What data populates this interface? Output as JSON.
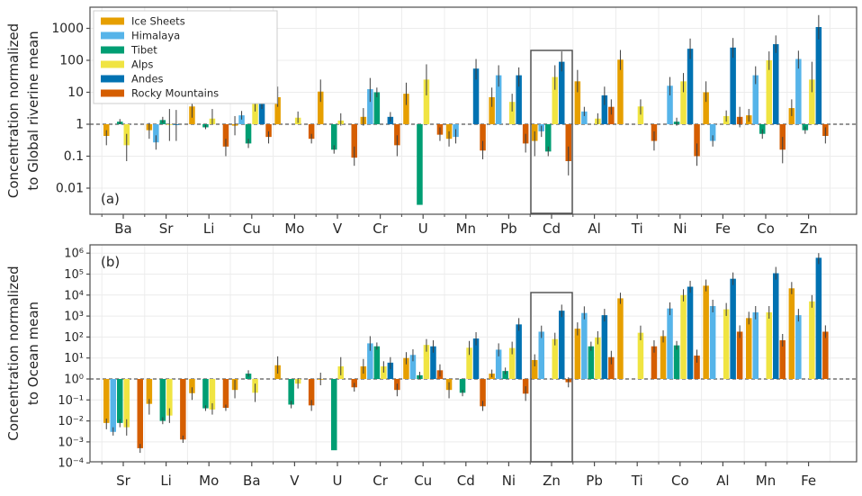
{
  "figure_title": "",
  "legend": {
    "position": "upper left",
    "items": [
      {
        "label": "Ice Sheets",
        "color": "#E69F00"
      },
      {
        "label": "Himalaya",
        "color": "#56B4E9"
      },
      {
        "label": "Tibet",
        "color": "#009E73"
      },
      {
        "label": "Alps",
        "color": "#F0E442"
      },
      {
        "label": "Andes",
        "color": "#0072B2"
      },
      {
        "label": "Rocky Mountains",
        "color": "#D55E00"
      }
    ]
  },
  "chart_data": [
    {
      "type": "bar",
      "panel_tag": "(a)",
      "yscale": "log",
      "ylabel_lines": [
        "Concentration normalized",
        "to Global riverine mean"
      ],
      "yticks": [
        "1000",
        "100",
        "10",
        "1",
        "0.1",
        "0.01"
      ],
      "ytick_values": [
        1000,
        100,
        10,
        1,
        0.1,
        0.01
      ],
      "ylim": [
        0.004,
        4000
      ],
      "reference_line": 1,
      "grid": true,
      "legend_here": true,
      "highlight_category": "Cd",
      "categories": [
        "Ba",
        "Sr",
        "Li",
        "Cu",
        "Mo",
        "V",
        "Cr",
        "U",
        "Mn",
        "Pb",
        "Cd",
        "Al",
        "Ti",
        "Ni",
        "Fe",
        "Co",
        "Zn"
      ],
      "series": [
        {
          "name": "Ice Sheets",
          "color": "#E69F00",
          "values": [
            0.43,
            0.65,
            3.6,
            0.9,
            7,
            10.5,
            1.7,
            9,
            0.35,
            7,
            0.3,
            22,
            105,
            null,
            10,
            1.9,
            3.2
          ],
          "err_lo": [
            0.22,
            0.35,
            1.6,
            0.45,
            3.5,
            5,
            0.9,
            4,
            0.2,
            3.5,
            0.1,
            10,
            50,
            null,
            5,
            1.2,
            1.8
          ],
          "err_hi": [
            0.65,
            1.1,
            8.5,
            1.8,
            15,
            25,
            3.2,
            20,
            0.6,
            14,
            0.6,
            50,
            210,
            null,
            22,
            3,
            6
          ]
        },
        {
          "name": "Himalaya",
          "color": "#56B4E9",
          "values": [
            null,
            0.27,
            null,
            1.9,
            null,
            null,
            12.5,
            null,
            0.4,
            34,
            0.6,
            2.5,
            null,
            16,
            0.3,
            34,
            110
          ],
          "err_lo": [
            null,
            0.16,
            null,
            1.4,
            null,
            null,
            5,
            null,
            0.25,
            15,
            0.4,
            1.8,
            null,
            8,
            0.2,
            18,
            55
          ],
          "err_hi": [
            null,
            0.45,
            null,
            2.6,
            null,
            null,
            28,
            null,
            0.7,
            70,
            0.9,
            3.5,
            null,
            30,
            0.45,
            65,
            200
          ]
        },
        {
          "name": "Tibet",
          "color": "#009E73",
          "values": [
            1.2,
            1.35,
            0.8,
            0.25,
            null,
            0.16,
            10,
            0.003,
            null,
            null,
            0.14,
            null,
            null,
            1.2,
            null,
            0.5,
            0.65
          ],
          "err_lo": [
            1.0,
            1.1,
            0.7,
            0.18,
            null,
            0.12,
            7,
            null,
            null,
            null,
            0.1,
            null,
            null,
            0.9,
            null,
            0.35,
            0.5
          ],
          "err_hi": [
            1.45,
            1.7,
            0.95,
            0.35,
            null,
            0.22,
            14,
            null,
            null,
            null,
            0.2,
            null,
            null,
            1.6,
            null,
            0.7,
            0.85
          ]
        },
        {
          "name": "Alps",
          "color": "#F0E442",
          "values": [
            0.22,
            1.0,
            1.5,
            6,
            1.6,
            1.3,
            null,
            25,
            null,
            5,
            30,
            1.5,
            3.6,
            22,
            1.8,
            100,
            25
          ],
          "err_lo": [
            0.07,
            0.3,
            1.0,
            2.5,
            1.1,
            0.9,
            null,
            8,
            null,
            2.5,
            12,
            1.0,
            2,
            10,
            1.2,
            50,
            10
          ],
          "err_hi": [
            0.5,
            3,
            3,
            14,
            2.5,
            2.2,
            null,
            75,
            null,
            9,
            70,
            2.2,
            6,
            40,
            2.7,
            190,
            90
          ]
        },
        {
          "name": "Andes",
          "color": "#0072B2",
          "values": [
            null,
            0.95,
            null,
            7,
            null,
            null,
            1.7,
            null,
            55,
            34,
            90,
            8,
            null,
            230,
            250,
            320,
            1100
          ],
          "err_lo": [
            null,
            0.3,
            null,
            3,
            null,
            null,
            1.2,
            null,
            25,
            15,
            45,
            4,
            null,
            110,
            120,
            170,
            450
          ],
          "err_hi": [
            null,
            2.8,
            null,
            15,
            null,
            null,
            2.4,
            null,
            110,
            60,
            190,
            15,
            null,
            480,
            500,
            600,
            2600
          ]
        },
        {
          "name": "Rocky Mountains",
          "color": "#D55E00",
          "values": [
            null,
            null,
            0.2,
            0.4,
            0.35,
            0.09,
            0.22,
            0.47,
            0.15,
            0.25,
            0.07,
            3.5,
            0.3,
            0.1,
            1.7,
            0.16,
            0.43
          ],
          "err_lo": [
            null,
            null,
            0.1,
            0.25,
            0.25,
            0.05,
            0.1,
            0.3,
            0.08,
            0.13,
            0.025,
            2,
            0.15,
            0.05,
            0.8,
            0.06,
            0.25
          ],
          "err_hi": [
            null,
            null,
            0.35,
            0.6,
            0.5,
            0.2,
            0.45,
            0.8,
            0.3,
            0.5,
            0.2,
            6,
            0.6,
            0.25,
            3.5,
            0.4,
            0.8
          ]
        }
      ]
    },
    {
      "type": "bar",
      "panel_tag": "(b)",
      "yscale": "log",
      "ylabel_lines": [
        "Concentration normalized",
        "to Ocean mean"
      ],
      "yticks": [
        "10⁶",
        "10⁵",
        "10⁴",
        "10³",
        "10²",
        "10¹",
        "10⁰",
        "10⁻¹",
        "10⁻²",
        "10⁻³",
        "10⁻⁴"
      ],
      "ytick_values": [
        1000000,
        100000,
        10000,
        1000,
        100,
        10,
        1,
        0.1,
        0.01,
        0.001,
        0.0001
      ],
      "ylim": [
        0.0001,
        1000000
      ],
      "reference_line": 1,
      "grid": true,
      "legend_here": false,
      "highlight_category": "Zn",
      "categories": [
        "Sr",
        "Li",
        "Mo",
        "Ba",
        "V",
        "U",
        "Cr",
        "Cu",
        "Cd",
        "Ni",
        "Zn",
        "Pb",
        "Ti",
        "Co",
        "Al",
        "Mn",
        "Fe"
      ],
      "series": [
        {
          "name": "Ice Sheets",
          "color": "#E69F00",
          "values": [
            0.008,
            0.065,
            0.21,
            0.3,
            4.5,
            1.0,
            4,
            10,
            0.3,
            1.8,
            8,
            250,
            7000,
            110,
            28000,
            800,
            21000
          ],
          "err_lo": [
            0.004,
            0.02,
            0.1,
            0.12,
            1.8,
            0.5,
            1.8,
            5,
            0.12,
            1.2,
            4,
            120,
            3800,
            55,
            15000,
            400,
            11000
          ],
          "err_hi": [
            0.013,
            0.11,
            0.4,
            0.9,
            12,
            2.0,
            9,
            19,
            0.7,
            2.8,
            15,
            500,
            13000,
            210,
            55000,
            1600,
            42000
          ]
        },
        {
          "name": "Himalaya",
          "color": "#56B4E9",
          "values": [
            0.003,
            null,
            null,
            null,
            null,
            null,
            50,
            14,
            null,
            25,
            180,
            1400,
            null,
            2300,
            3000,
            1500,
            1100
          ],
          "err_lo": [
            0.002,
            null,
            null,
            null,
            null,
            null,
            22,
            7,
            null,
            12,
            90,
            700,
            null,
            1100,
            1500,
            700,
            550
          ],
          "err_hi": [
            0.005,
            null,
            null,
            null,
            null,
            null,
            110,
            26,
            null,
            50,
            350,
            2900,
            null,
            4500,
            6000,
            3000,
            2200
          ]
        },
        {
          "name": "Tibet",
          "color": "#009E73",
          "values": [
            0.008,
            0.01,
            0.04,
            1.8,
            0.06,
            0.0004,
            36,
            1.5,
            0.22,
            2.4,
            null,
            36,
            null,
            40,
            null,
            null,
            null
          ],
          "err_lo": [
            0.005,
            0.007,
            0.03,
            1.3,
            0.04,
            null,
            25,
            1.0,
            0.15,
            1.7,
            null,
            22,
            null,
            25,
            null,
            null,
            null
          ],
          "err_hi": [
            0.012,
            0.015,
            0.055,
            2.6,
            0.09,
            null,
            55,
            2.2,
            0.3,
            3.5,
            null,
            60,
            null,
            65,
            null,
            null,
            null
          ]
        },
        {
          "name": "Alps",
          "color": "#F0E442",
          "values": [
            0.005,
            0.018,
            0.035,
            0.22,
            0.6,
            4,
            4,
            42,
            31,
            30,
            80,
            95,
            160,
            10000,
            2100,
            1500,
            5000
          ],
          "err_lo": [
            0.002,
            0.008,
            0.02,
            0.08,
            0.35,
            1.5,
            2,
            20,
            14,
            15,
            40,
            45,
            70,
            5000,
            1000,
            750,
            2500
          ],
          "err_hi": [
            0.012,
            0.04,
            0.07,
            0.6,
            1.1,
            11,
            7,
            80,
            65,
            60,
            160,
            190,
            350,
            19000,
            4200,
            3000,
            10000
          ]
        },
        {
          "name": "Andes",
          "color": "#0072B2",
          "values": [
            null,
            null,
            null,
            null,
            null,
            null,
            6,
            36,
            85,
            400,
            1800,
            1100,
            null,
            25000,
            60000,
            110000,
            600000
          ],
          "err_lo": [
            null,
            null,
            null,
            null,
            null,
            null,
            3,
            18,
            40,
            200,
            900,
            550,
            null,
            13000,
            30000,
            55000,
            300000
          ],
          "err_hi": [
            null,
            null,
            null,
            null,
            null,
            null,
            11,
            70,
            170,
            800,
            3500,
            2200,
            null,
            48000,
            120000,
            220000,
            1000000
          ]
        },
        {
          "name": "Rocky Mountains",
          "color": "#D55E00",
          "values": [
            0.0005,
            0.0013,
            0.042,
            null,
            0.055,
            0.4,
            0.3,
            2.6,
            0.05,
            0.2,
            0.7,
            11,
            36,
            13,
            180,
            70,
            180
          ],
          "err_lo": [
            0.0003,
            0.0009,
            0.03,
            null,
            0.03,
            0.25,
            0.15,
            1.3,
            0.03,
            0.09,
            0.4,
            5,
            18,
            6,
            90,
            35,
            90
          ],
          "err_hi": [
            0.0008,
            0.002,
            0.06,
            null,
            0.1,
            0.65,
            0.6,
            5,
            0.09,
            0.45,
            1.2,
            22,
            70,
            25,
            360,
            140,
            360
          ]
        }
      ]
    }
  ]
}
